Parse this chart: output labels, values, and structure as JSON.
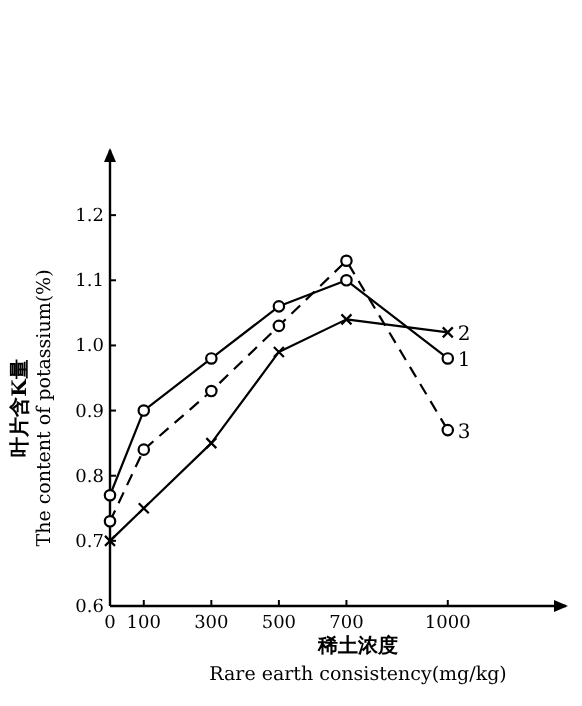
{
  "chart_data": {
    "type": "line",
    "ylabel": "叶片含K量\nThe content of potassium(%)",
    "xlabel": "稀土浓度\nRare earth consistency(mg/kg)",
    "x": [
      0,
      100,
      300,
      500,
      700,
      1000
    ],
    "xlim": [
      0,
      1350
    ],
    "xticks": [
      0,
      100,
      300,
      500,
      700,
      1000
    ],
    "ylim": [
      0.6,
      1.3
    ],
    "yticks": [
      0.6,
      0.7,
      0.8,
      0.9,
      {
        "value": 1.0,
        "label": "1.0"
      },
      1.1,
      1.2
    ],
    "grid": false,
    "legend": false,
    "series": [
      {
        "name": "1",
        "color": "#000000",
        "marker": "circle",
        "line_style": "solid",
        "values": [
          0.77,
          0.9,
          0.98,
          1.06,
          1.1,
          0.98
        ]
      },
      {
        "name": "2",
        "color": "#000000",
        "marker": "cross",
        "line_style": "solid",
        "values": [
          0.7,
          0.75,
          0.85,
          0.99,
          1.04,
          1.02
        ]
      },
      {
        "name": "3",
        "color": "#000000",
        "marker": "circle",
        "line_style": "dashed",
        "values": [
          0.73,
          0.84,
          0.93,
          1.03,
          1.13,
          0.87
        ]
      }
    ]
  }
}
